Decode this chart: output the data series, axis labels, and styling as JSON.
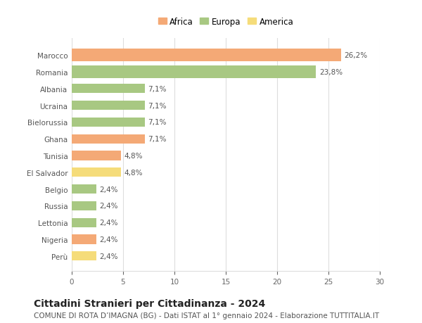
{
  "countries": [
    "Marocco",
    "Romania",
    "Albania",
    "Ucraina",
    "Bielorussia",
    "Ghana",
    "Tunisia",
    "El Salvador",
    "Belgio",
    "Russia",
    "Lettonia",
    "Nigeria",
    "Perù"
  ],
  "values": [
    26.2,
    23.8,
    7.1,
    7.1,
    7.1,
    7.1,
    4.8,
    4.8,
    2.4,
    2.4,
    2.4,
    2.4,
    2.4
  ],
  "continents": [
    "Africa",
    "Europa",
    "Europa",
    "Europa",
    "Europa",
    "Africa",
    "Africa",
    "America",
    "Europa",
    "Europa",
    "Europa",
    "Africa",
    "America"
  ],
  "colors": {
    "Africa": "#F4A976",
    "Europa": "#A8C882",
    "America": "#F5DC7A"
  },
  "bar_labels": [
    "26,2%",
    "23,8%",
    "7,1%",
    "7,1%",
    "7,1%",
    "7,1%",
    "4,8%",
    "4,8%",
    "2,4%",
    "2,4%",
    "2,4%",
    "2,4%",
    "2,4%"
  ],
  "xlim": [
    0,
    30
  ],
  "xticks": [
    0,
    5,
    10,
    15,
    20,
    25,
    30
  ],
  "title": "Cittadini Stranieri per Cittadinanza - 2024",
  "subtitle": "COMUNE DI ROTA D’IMAGNA (BG) - Dati ISTAT al 1° gennaio 2024 - Elaborazione TUTTITALIA.IT",
  "background_color": "#FFFFFF",
  "grid_color": "#DDDDDD",
  "bar_height": 0.55,
  "top_bar_height": 0.75,
  "label_fontsize": 7.5,
  "title_fontsize": 10,
  "subtitle_fontsize": 7.5,
  "tick_fontsize": 7.5,
  "legend_fontsize": 8.5
}
